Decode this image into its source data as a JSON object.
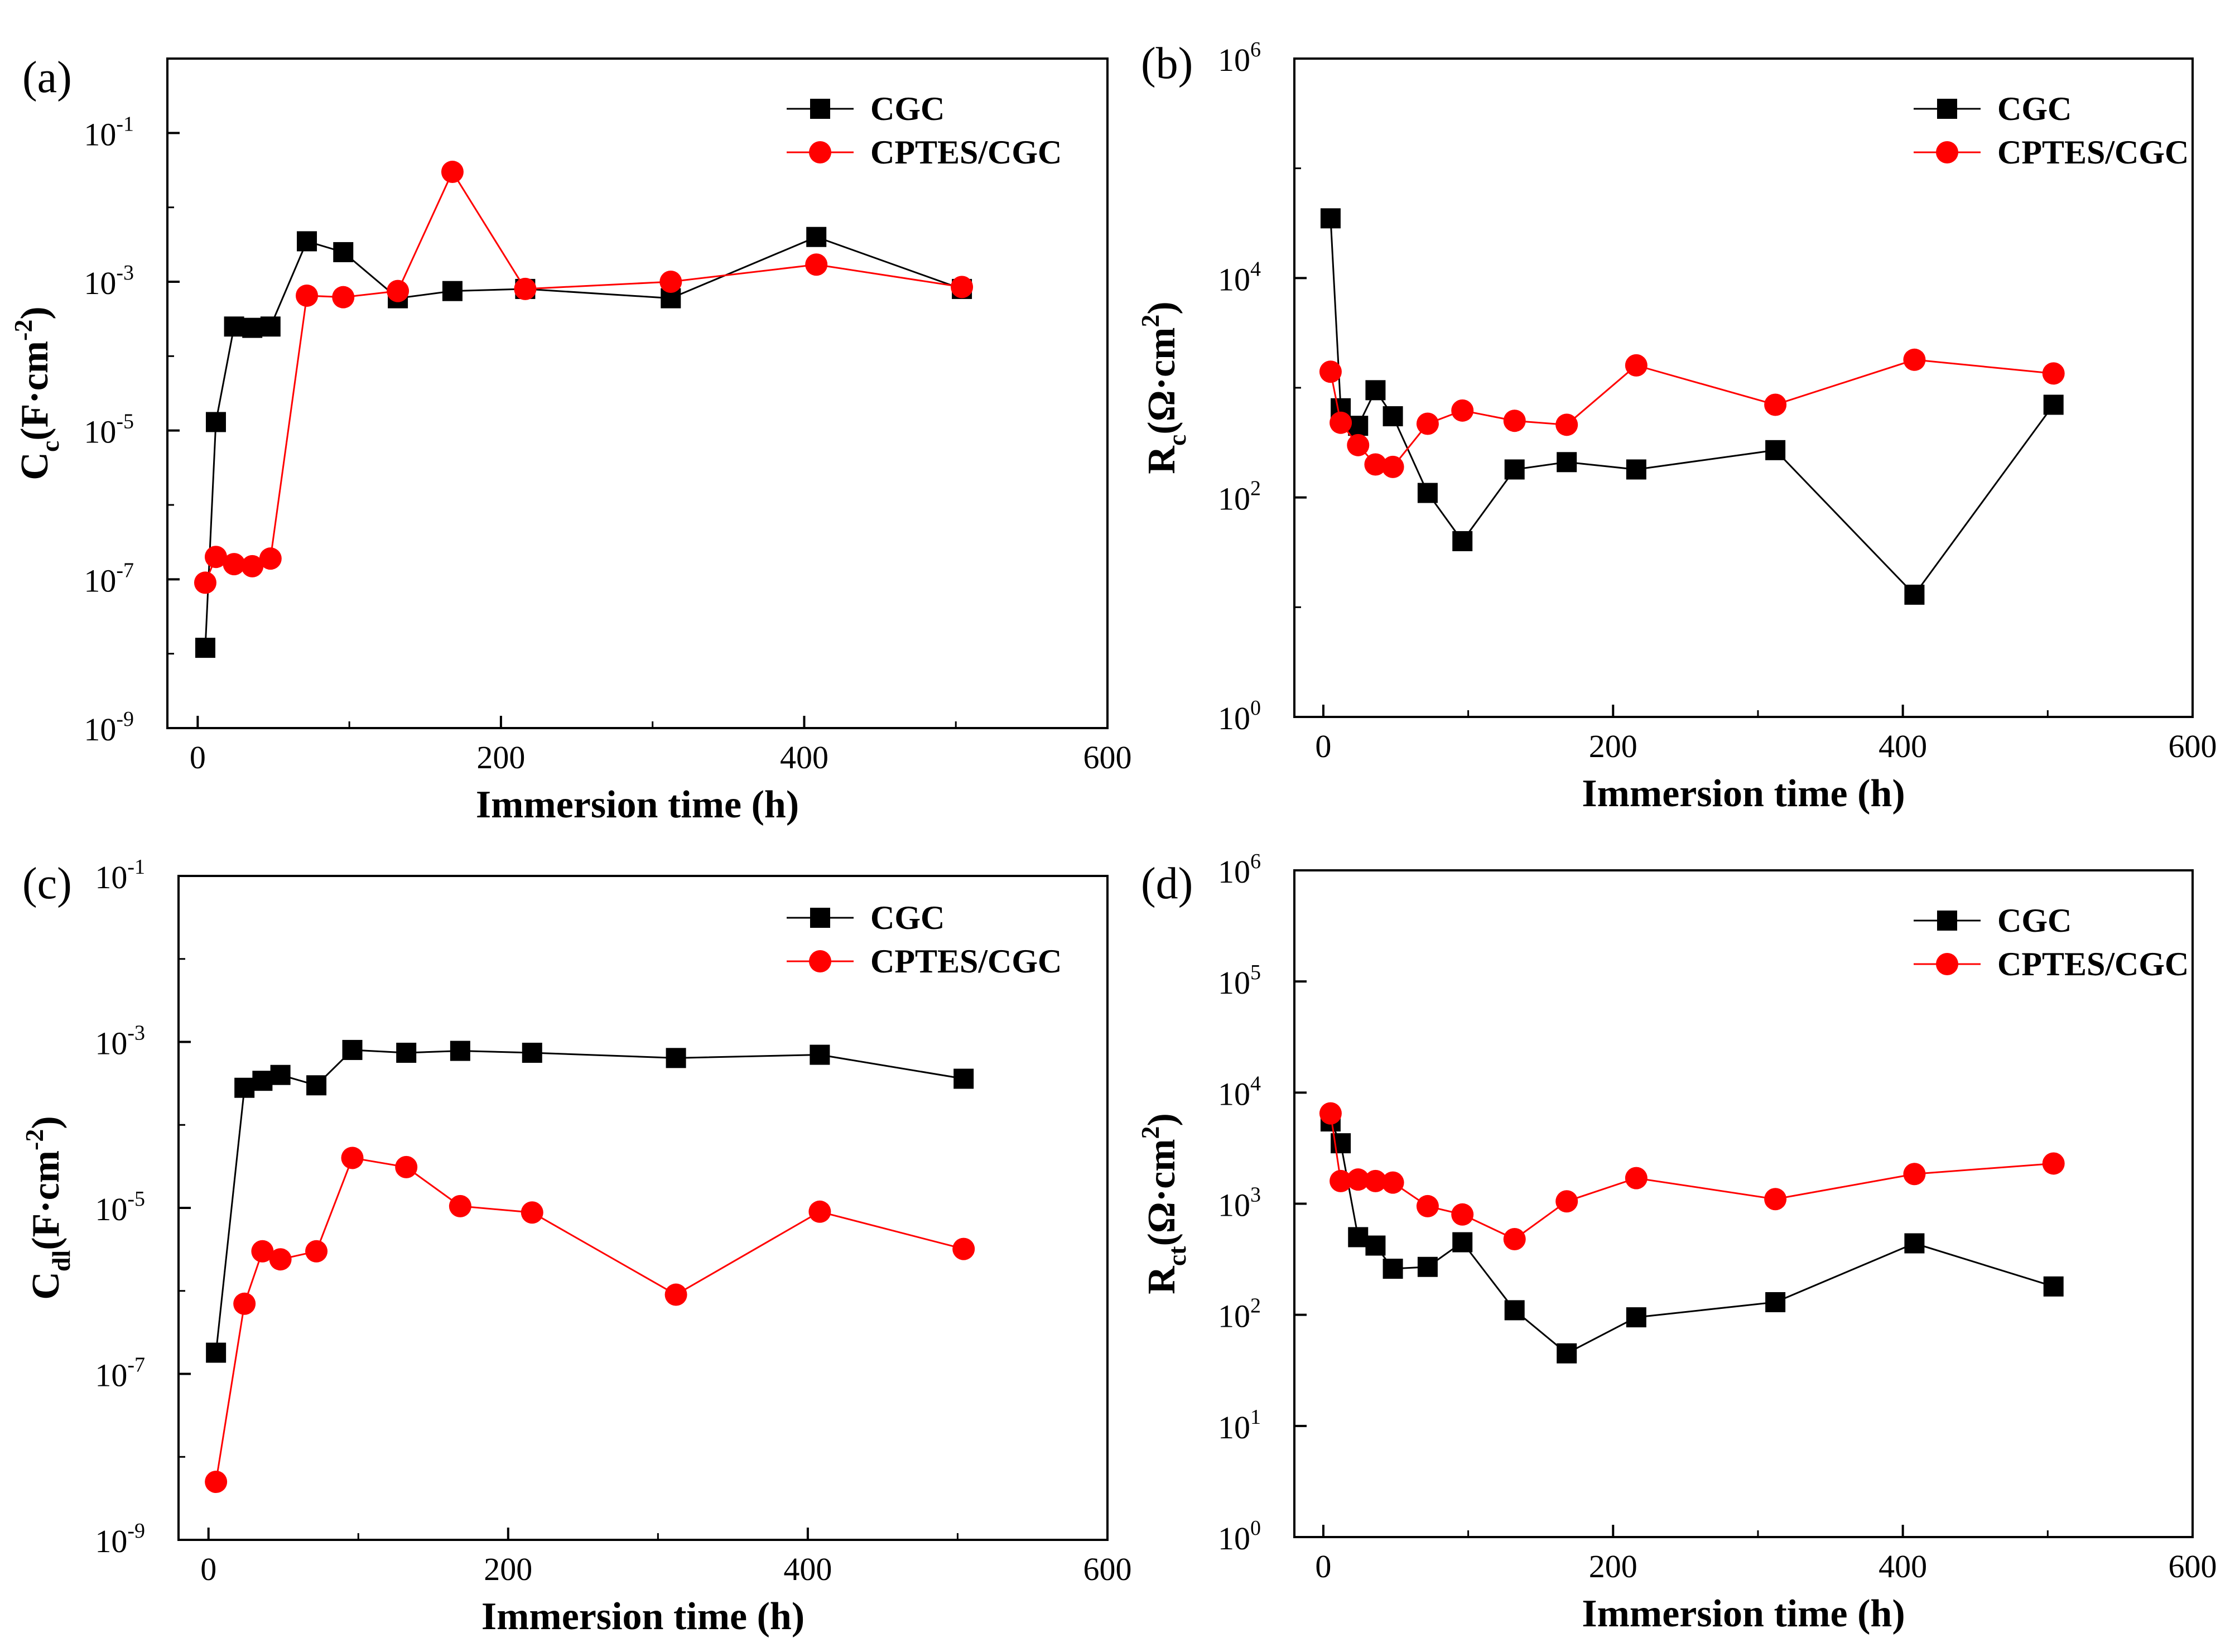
{
  "colors": {
    "CGC": "#000000",
    "CPTES/CGC": "#ff0000"
  },
  "chart_data": [
    {
      "type": "line",
      "panel": "(a)",
      "xlabel": "Immersion time (h)",
      "ylabel": {
        "base": "C",
        "sub": "c",
        "unit_open": "(F·cm",
        "unit_exp": "-2",
        "unit_close": ")"
      },
      "xlim": [
        -20,
        600
      ],
      "xticks": [
        0,
        200,
        400,
        600
      ],
      "yscale": "log",
      "ylim_exp": [
        -9,
        0
      ],
      "yticks_exp": [
        -9,
        -7,
        -5,
        -3,
        -1
      ],
      "ytick_base": "10",
      "ytick_exps": [
        "-9",
        "-7",
        "-5",
        "-3",
        "-1"
      ],
      "legend": [
        "CGC",
        "CPTES/CGC"
      ],
      "series": [
        {
          "name": "CGC",
          "marker": "square",
          "x": [
            5,
            12,
            24,
            36,
            48,
            72,
            96,
            132,
            168,
            216,
            312,
            408,
            504
          ],
          "y": [
            1.2e-08,
            1.3e-05,
            0.00025,
            0.00024,
            0.00025,
            0.0035,
            0.0025,
            0.0006,
            0.00075,
            0.0008,
            0.0006,
            0.004,
            0.0008
          ]
        },
        {
          "name": "CPTES/CGC",
          "marker": "circle",
          "x": [
            5,
            12,
            24,
            36,
            48,
            72,
            96,
            132,
            168,
            216,
            312,
            408,
            504
          ],
          "y": [
            9e-08,
            2e-07,
            1.6e-07,
            1.5e-07,
            1.9e-07,
            0.00065,
            0.00062,
            0.00075,
            0.03,
            0.0008,
            0.001,
            0.0017,
            0.00085
          ]
        }
      ]
    },
    {
      "type": "line",
      "panel": "(b)",
      "xlabel": "Immersion time (h)",
      "ylabel": {
        "base": "R",
        "sub": "c",
        "unit_open": "(Ω·cm",
        "unit_exp": "2",
        "unit_close": ")"
      },
      "xlim": [
        -20,
        600
      ],
      "xticks": [
        0,
        200,
        400,
        600
      ],
      "yscale": "log",
      "ylim_exp": [
        0,
        6
      ],
      "yticks_exp": [
        0,
        2,
        4,
        6
      ],
      "ytick_base": "10",
      "ytick_exps": [
        "0",
        "2",
        "4",
        "6"
      ],
      "legend": [
        "CGC",
        "CPTES/CGC"
      ],
      "series": [
        {
          "name": "CGC",
          "marker": "square",
          "x": [
            5,
            12,
            24,
            36,
            48,
            72,
            96,
            132,
            168,
            216,
            312,
            408,
            504
          ],
          "y": [
            35000,
            650,
            450,
            950,
            550,
            110,
            40,
            180,
            210,
            180,
            270,
            13,
            700
          ]
        },
        {
          "name": "CPTES/CGC",
          "marker": "circle",
          "x": [
            5,
            12,
            24,
            36,
            48,
            72,
            96,
            132,
            168,
            216,
            312,
            408,
            504
          ],
          "y": [
            1400,
            480,
            300,
            200,
            190,
            470,
            620,
            500,
            460,
            1600,
            700,
            1800,
            1350
          ]
        }
      ]
    },
    {
      "type": "line",
      "panel": "(c)",
      "xlabel": "Immersion time (h)",
      "ylabel": {
        "base": "C",
        "sub": "dl",
        "unit_open": "(F·cm",
        "unit_exp": "-2",
        "unit_close": ")"
      },
      "xlim": [
        -20,
        600
      ],
      "xticks": [
        0,
        200,
        400,
        600
      ],
      "yscale": "log",
      "ylim_exp": [
        -9,
        -1
      ],
      "yticks_exp": [
        -9,
        -7,
        -5,
        -3,
        -1
      ],
      "ytick_base": "10",
      "ytick_exps": [
        "-9",
        "-7",
        "-5",
        "-3",
        "-1"
      ],
      "legend": [
        "CGC",
        "CPTES/CGC"
      ],
      "series": [
        {
          "name": "CGC",
          "marker": "square",
          "x": [
            5,
            24,
            36,
            48,
            72,
            96,
            132,
            168,
            216,
            312,
            408,
            504
          ],
          "y": [
            1.8e-07,
            0.00028,
            0.00034,
            0.0004,
            0.0003,
            0.0008,
            0.00074,
            0.00078,
            0.00074,
            0.00064,
            0.0007,
            0.00036
          ]
        },
        {
          "name": "CPTES/CGC",
          "marker": "circle",
          "x": [
            5,
            24,
            36,
            48,
            72,
            96,
            132,
            168,
            216,
            312,
            408,
            504
          ],
          "y": [
            5e-09,
            7e-07,
            3e-06,
            2.4e-06,
            3e-06,
            4e-05,
            3.1e-05,
            1.05e-05,
            8.8e-06,
            9e-07,
            9e-06,
            3.2e-06
          ]
        }
      ]
    },
    {
      "type": "line",
      "panel": "(d)",
      "xlabel": "Immersion time (h)",
      "ylabel": {
        "base": "R",
        "sub": "ct",
        "unit_open": "(Ω·cm",
        "unit_exp": "2",
        "unit_close": ")"
      },
      "xlim": [
        -20,
        600
      ],
      "xticks": [
        0,
        200,
        400,
        600
      ],
      "yscale": "log",
      "ylim_exp": [
        0,
        6
      ],
      "yticks_exp": [
        0,
        1,
        2,
        3,
        4,
        5,
        6
      ],
      "ytick_base": "10",
      "ytick_exps": [
        "0",
        "1",
        "2",
        "3",
        "4",
        "5",
        "6"
      ],
      "legend": [
        "CGC",
        "CPTES/CGC"
      ],
      "series": [
        {
          "name": "CGC",
          "marker": "square",
          "x": [
            5,
            12,
            24,
            36,
            48,
            72,
            96,
            132,
            168,
            216,
            312,
            408,
            504
          ],
          "y": [
            5500,
            3500,
            500,
            420,
            260,
            270,
            450,
            110,
            45,
            95,
            130,
            440,
            180
          ]
        },
        {
          "name": "CPTES/CGC",
          "marker": "circle",
          "x": [
            5,
            12,
            24,
            36,
            48,
            72,
            96,
            132,
            168,
            216,
            312,
            408,
            504
          ],
          "y": [
            6500,
            1600,
            1650,
            1600,
            1550,
            950,
            800,
            480,
            1050,
            1700,
            1100,
            1850,
            2300
          ]
        }
      ]
    }
  ]
}
